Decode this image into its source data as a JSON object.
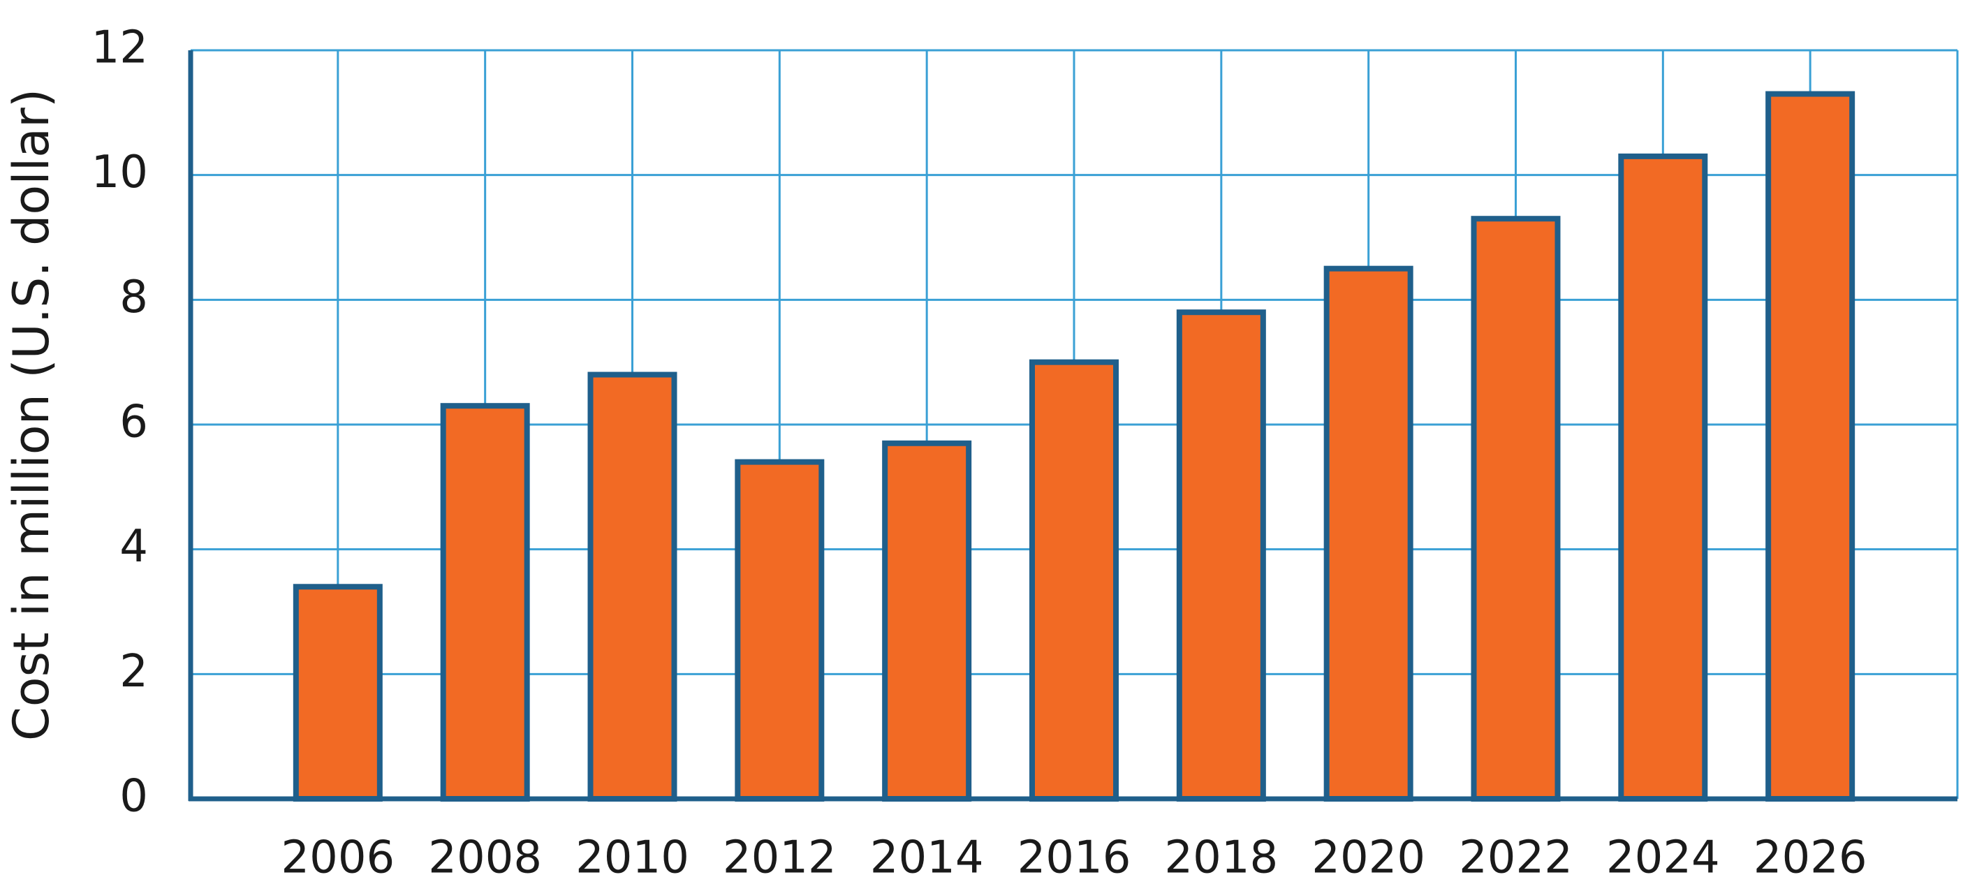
{
  "chart_data": {
    "type": "bar",
    "y_axis_label": "Cost in million (U.S. dollar)",
    "categories": [
      "2006",
      "2008",
      "2010",
      "2012",
      "2014",
      "2016",
      "2018",
      "2020",
      "2022",
      "2024",
      "2026"
    ],
    "values": [
      3.4,
      6.3,
      6.8,
      5.4,
      5.7,
      7.0,
      7.8,
      8.5,
      9.3,
      10.3,
      11.3
    ],
    "color": "#f26a24",
    "edge_color": "#1f5f8b",
    "grid_color": "#3aa0d5",
    "ylim": [
      0,
      12
    ],
    "yticks": [
      0,
      2,
      4,
      6,
      8,
      10,
      12
    ],
    "grid": true
  }
}
